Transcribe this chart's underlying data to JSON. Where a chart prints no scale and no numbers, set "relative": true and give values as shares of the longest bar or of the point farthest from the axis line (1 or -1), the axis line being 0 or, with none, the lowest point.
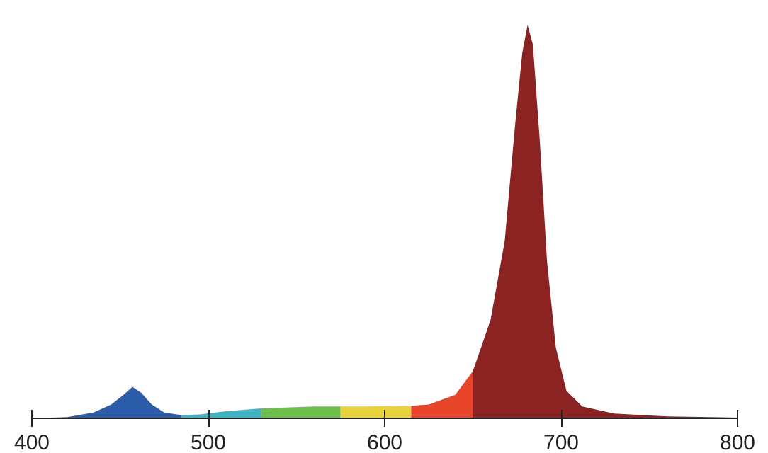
{
  "chart_data": {
    "type": "area",
    "relative": true,
    "xlim": [
      400,
      800
    ],
    "xticks": [
      400,
      500,
      600,
      700,
      800
    ],
    "series": [
      {
        "color": "#2a5caa",
        "x": [
          400,
          420,
          435,
          445,
          452,
          457,
          462,
          468,
          475,
          485
        ],
        "values": [
          0,
          0.003,
          0.015,
          0.035,
          0.06,
          0.08,
          0.065,
          0.035,
          0.015,
          0.008
        ]
      },
      {
        "color": "#3bb3c3",
        "x": [
          485,
          495,
          510,
          530
        ],
        "values": [
          0.008,
          0.01,
          0.018,
          0.025
        ]
      },
      {
        "color": "#6dbf4b",
        "x": [
          530,
          560,
          575
        ],
        "values": [
          0.025,
          0.03,
          0.03
        ]
      },
      {
        "color": "#e8d33a",
        "x": [
          575,
          590,
          615
        ],
        "values": [
          0.03,
          0.03,
          0.032
        ]
      },
      {
        "color": "#e8442a",
        "x": [
          615,
          625,
          640,
          650
        ],
        "values": [
          0.032,
          0.035,
          0.06,
          0.12
        ]
      },
      {
        "color": "#8b2323",
        "x": [
          650,
          660,
          668,
          674,
          678,
          681,
          684,
          688,
          692,
          697,
          703,
          712,
          730,
          760,
          800
        ],
        "values": [
          0.12,
          0.25,
          0.45,
          0.75,
          0.93,
          1.0,
          0.95,
          0.7,
          0.4,
          0.18,
          0.07,
          0.03,
          0.012,
          0.005,
          0.002
        ]
      }
    ]
  }
}
